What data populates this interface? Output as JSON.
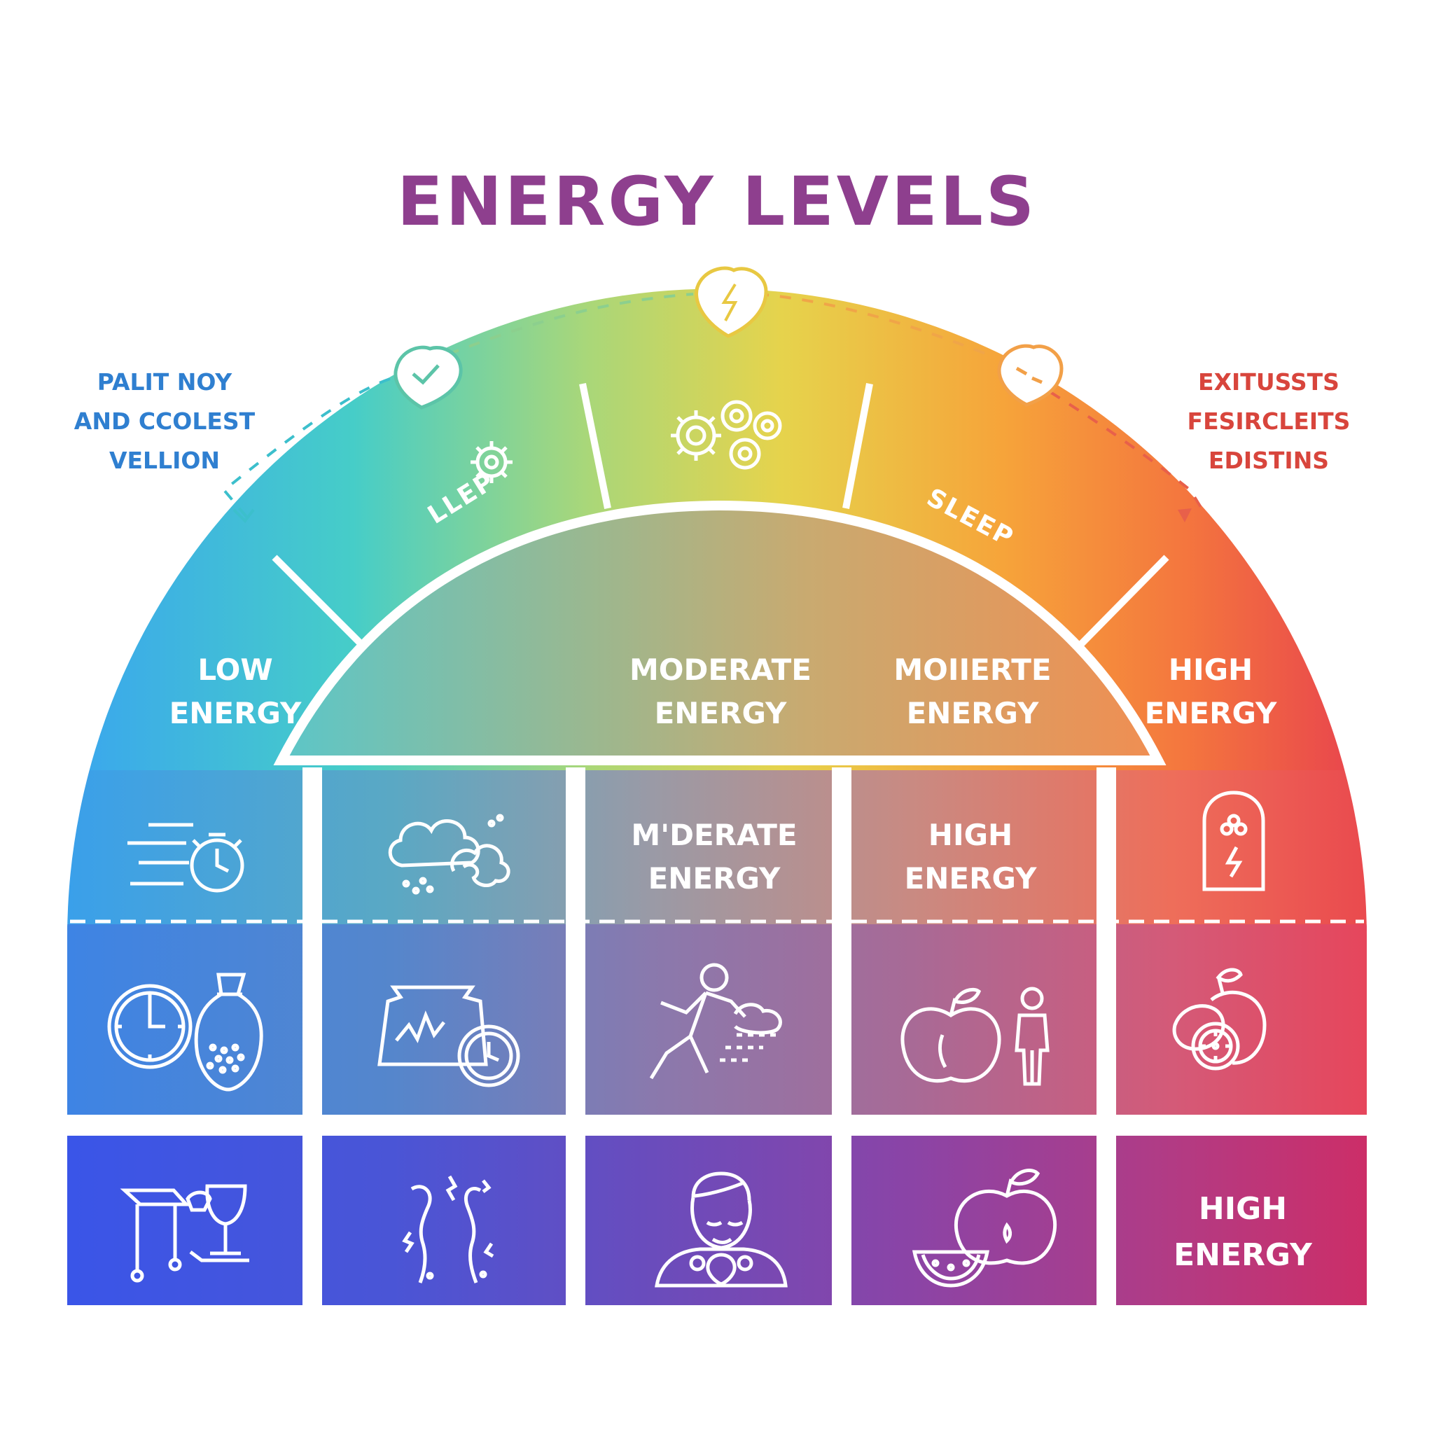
{
  "title": "ENERGY LEVELS",
  "colors": {
    "title": "#8e3f8e",
    "left_note": "#2f7fd0",
    "right_note": "#d8453c",
    "blue": "#3a56e8",
    "teal": "#3ec6d2",
    "green": "#b8d86a",
    "yellow": "#f2c23a",
    "orange": "#f48a3a",
    "red": "#e8404e",
    "purple": "#7c45b0",
    "magenta": "#c92d6e"
  },
  "left_note": {
    "lines": [
      "PALIT NOY",
      "AND CCOLEST",
      "VELLION"
    ]
  },
  "right_note": {
    "lines": [
      "EXITUSSTS",
      "FESIRCLEITS",
      "EDISTINS"
    ]
  },
  "arc": {
    "segment_2_label": "LLEP",
    "segment_4_label": "SLEEP"
  },
  "middle_band": {
    "low": [
      "LOW",
      "ENERGY"
    ],
    "moderate": [
      "MODERATE",
      "ENERGY"
    ],
    "moderate_2": [
      "MOIIERTE",
      "ENERGY"
    ],
    "high": [
      "HIGH",
      "ENERGY"
    ]
  },
  "grid": {
    "row1_col3": [
      "M'DERATE",
      "ENERGY"
    ],
    "row1_col4": [
      "HIGH",
      "ENERGY"
    ],
    "row3_col5": [
      "HIGH",
      "ENERGY"
    ]
  },
  "icons": {
    "top_left_marker": "check-pin-icon",
    "top_center_marker": "lightning-pin-icon",
    "top_right_marker": "dash-pin-icon",
    "arc_2": "gear-icon",
    "arc_3": "gears-and-cells-icon",
    "r1c1": "fast-stopwatch-icon",
    "r1c2": "cloud-burst-icon",
    "r1c5": "battery-icon",
    "r2c1": "clock-and-bag-icon",
    "r2c2": "monitor-clock-icon",
    "r2c3": "running-person-icon",
    "r2c4": "apple-and-person-icon",
    "r2c5": "fruits-icon",
    "r3c1": "table-and-glass-icon",
    "r3c2": "stress-figures-icon",
    "r3c3": "person-portrait-icon",
    "r3c4": "apple-and-melon-icon"
  }
}
